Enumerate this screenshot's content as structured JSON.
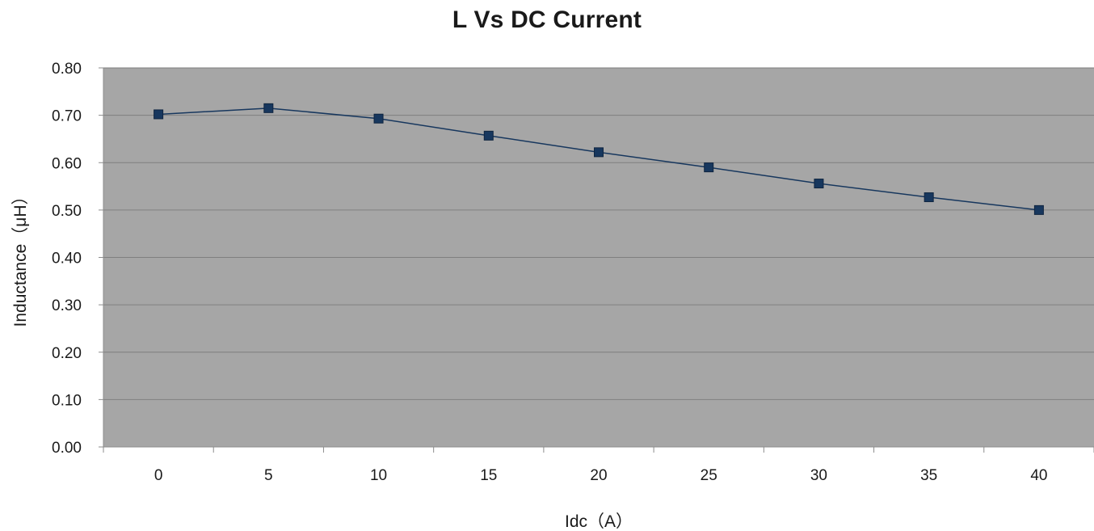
{
  "chart_data": {
    "type": "line",
    "title": "L Vs DC Current",
    "xlabel": "Idc（A）",
    "ylabel": "Inductance（μH）",
    "categories": [
      "0",
      "5",
      "10",
      "15",
      "20",
      "25",
      "30",
      "35",
      "40"
    ],
    "series": [
      {
        "values": [
          0.702,
          0.715,
          0.693,
          0.657,
          0.622,
          0.59,
          0.556,
          0.527,
          0.5
        ]
      }
    ],
    "ylim": [
      0,
      0.8
    ],
    "yticks": [
      "0.00",
      "0.10",
      "0.20",
      "0.30",
      "0.40",
      "0.50",
      "0.60",
      "0.70",
      "0.80"
    ],
    "grid": true,
    "legend": "none",
    "colors": {
      "plot_background": "#a6a6a6",
      "gridline": "#7f7f7f",
      "series_line": "#17375e",
      "marker": "#17375e"
    }
  }
}
